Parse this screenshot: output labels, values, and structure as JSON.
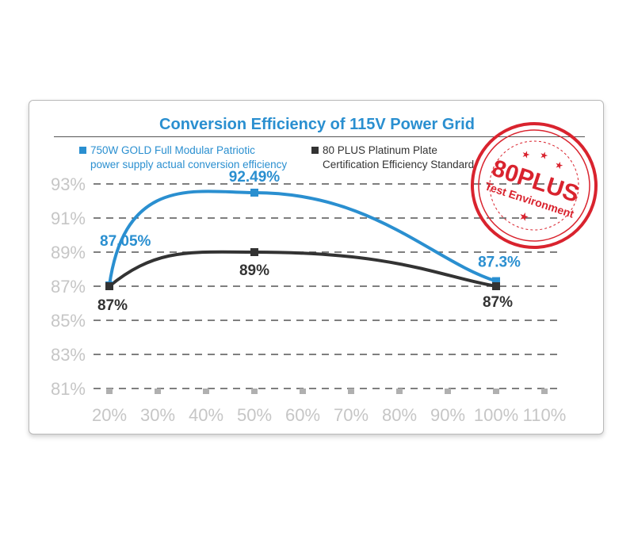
{
  "chart_data": {
    "type": "line",
    "title": "Conversion Efficiency of 115V Power Grid",
    "x_labels": [
      "20%",
      "30%",
      "40%",
      "50%",
      "60%",
      "70%",
      "80%",
      "90%",
      "100%",
      "110%"
    ],
    "y_labels": [
      "93%",
      "91%",
      "89%",
      "87%",
      "85%",
      "83%",
      "81%"
    ],
    "ylim": [
      81,
      93
    ],
    "series": [
      {
        "name": "750W GOLD Full Modular Patriotic power supply actual conversion efficiency",
        "legend_lines": [
          "750W GOLD Full Modular Patriotic",
          "power supply actual conversion efficiency"
        ],
        "color": "#2a8fd0",
        "x": [
          20,
          50,
          100
        ],
        "y": [
          87.05,
          92.49,
          87.3
        ],
        "labels": [
          "87.05%",
          "92.49%",
          "87.3%"
        ]
      },
      {
        "name": "80 PLUS Platinum Plate Certification Efficiency Standard",
        "legend_lines": [
          "80 PLUS Platinum Plate",
          "Certification Efficiency Standard"
        ],
        "color": "#333333",
        "x": [
          20,
          50,
          100
        ],
        "y": [
          87,
          89,
          87
        ],
        "labels": [
          "87%",
          "89%",
          "87%"
        ]
      }
    ]
  },
  "stamp": {
    "main": "80PLUS",
    "sub": "Test Environment",
    "color": "#d9232e"
  }
}
